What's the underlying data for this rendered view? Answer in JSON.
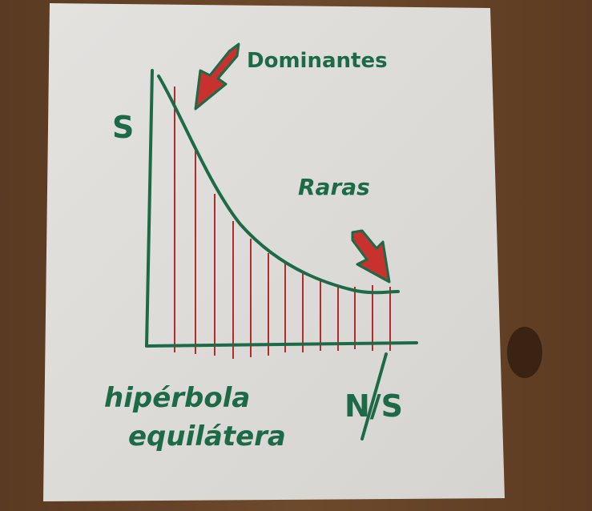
{
  "labels": {
    "y_axis": "S",
    "x_axis": "N/S",
    "dominant": "Dominantes",
    "rare": "Raras",
    "curve_name": [
      "hipérbola",
      "equilátera"
    ]
  }
}
